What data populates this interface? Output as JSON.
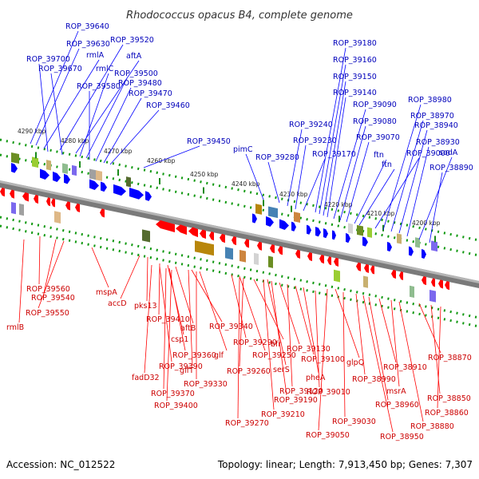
{
  "title": "Rhodococcus opacus B4, complete genome",
  "accession": "Accession: NC_012522",
  "topology": "Topology: linear; Length: 7,913,450 bp; Genes: 7,307",
  "colors": {
    "forward": "#0000ff",
    "reverse": "#ff0000",
    "forward_label": "#0000bb",
    "reverse_label": "#cc0000",
    "backbone": "#777777",
    "dots": "#119911"
  },
  "ticks": [
    {
      "text": "4290 kbp"
    },
    {
      "text": "4280 kbp"
    },
    {
      "text": "4270 kbp"
    },
    {
      "text": "4260 kbp"
    },
    {
      "text": "4250 kbp"
    },
    {
      "text": "4240 kbp"
    },
    {
      "text": "4230 kbp"
    },
    {
      "text": "4220 kbp"
    },
    {
      "text": "4210 kbp"
    },
    {
      "text": "4200 kbp"
    }
  ],
  "forward_genes": [
    "ROP_39640",
    "ROP_39630",
    "rmlA",
    "ROP_39520",
    "ROP_39700",
    "aftA",
    "ROP_39670",
    "rmlC",
    "ROP_39500",
    "ROP_39580",
    "ROP_39480",
    "ROP_39470",
    "ROP_39460",
    "ROP_39450",
    "pimC",
    "ROP_39280",
    "ROP_39240",
    "ROP_39230",
    "ROP_39170",
    "ROP_39180",
    "ROP_39160",
    "ROP_39150",
    "ROP_39140",
    "ROP_39090",
    "ROP_39080",
    "ROP_39070",
    "ftn",
    "ftn",
    "ROP_39000",
    "ROP_38980",
    "ROP_38970",
    "ROP_38940",
    "ROP_38930",
    "sodA",
    "ROP_38890"
  ],
  "reverse_genes": [
    "ROP_39560",
    "ROP_39540",
    "ROP_39550",
    "rmlB",
    "mspA",
    "accD",
    "pks13",
    "ROP_39410",
    "csp1",
    "aftB",
    "ROP_39340",
    "ROP_39360",
    "glf",
    "ROP_39390",
    "fadD32",
    "glfT",
    "ROP_39370",
    "ROP_39330",
    "ROP_39400",
    "ROP_39290",
    "ROP_39250",
    "bfr",
    "ROP_39130",
    "ROP_39100",
    "glpQ",
    "serS",
    "ROP_39260",
    "pheA",
    "ROP_39190",
    "ROP_39120",
    "ROP_39010",
    "ROP_39210",
    "ROP_39270",
    "ROP_38990",
    "ROP_38910",
    "ROP_38870",
    "ROP_38960",
    "msrA",
    "ROP_38850",
    "ROP_38860",
    "ROP_39030",
    "ROP_38880",
    "ROP_39050",
    "ROP_38950"
  ]
}
